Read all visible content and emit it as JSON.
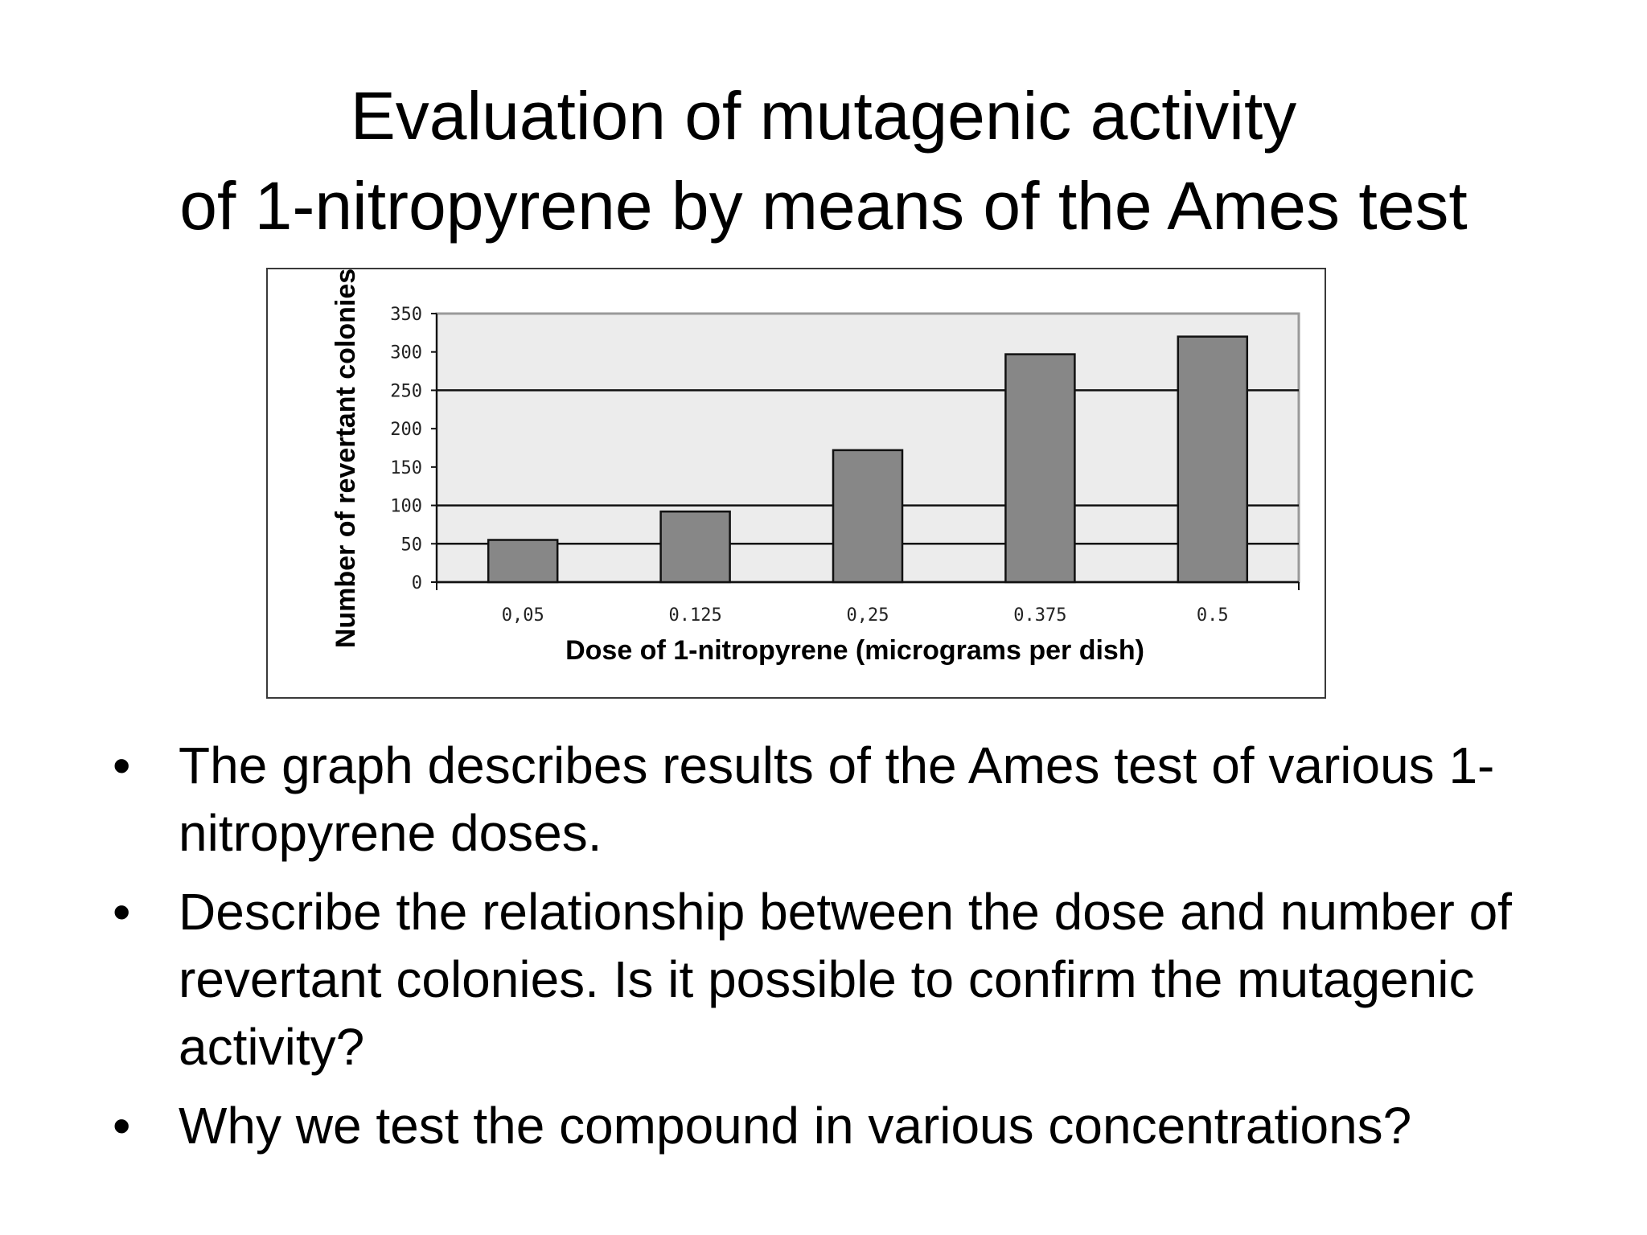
{
  "slide": {
    "title_line1": "Evaluation of mutagenic activity",
    "title_line2": "of 1-nitropyrene by means of the Ames test",
    "bullet_symbol": "•",
    "bullets": [
      "The graph describes results of the Ames test of various 1-nitropyrene doses.",
      "Describe the relationship between the dose and number of revertant colonies. Is it possible to confirm the mutagenic activity?",
      "Why we test the compound in various concentrations?"
    ]
  },
  "chart_data": {
    "type": "bar",
    "categories": [
      "0,05",
      "0.125",
      "0,25",
      "0.375",
      "0.5"
    ],
    "values": [
      55,
      92,
      172,
      297,
      320
    ],
    "xlabel": "Dose of 1-nitropyrene (micrograms per dish)",
    "ylabel": "Number of revertant colonies",
    "ylim": [
      0,
      350
    ],
    "yticks": [
      0,
      50,
      100,
      150,
      200,
      250,
      300,
      350
    ],
    "grid_lines_at": [
      50,
      100,
      250
    ],
    "colors": {
      "bar_fill": "#878787",
      "bar_stroke": "#111111",
      "plot_background": "#ececec",
      "grid": "#111111"
    }
  }
}
